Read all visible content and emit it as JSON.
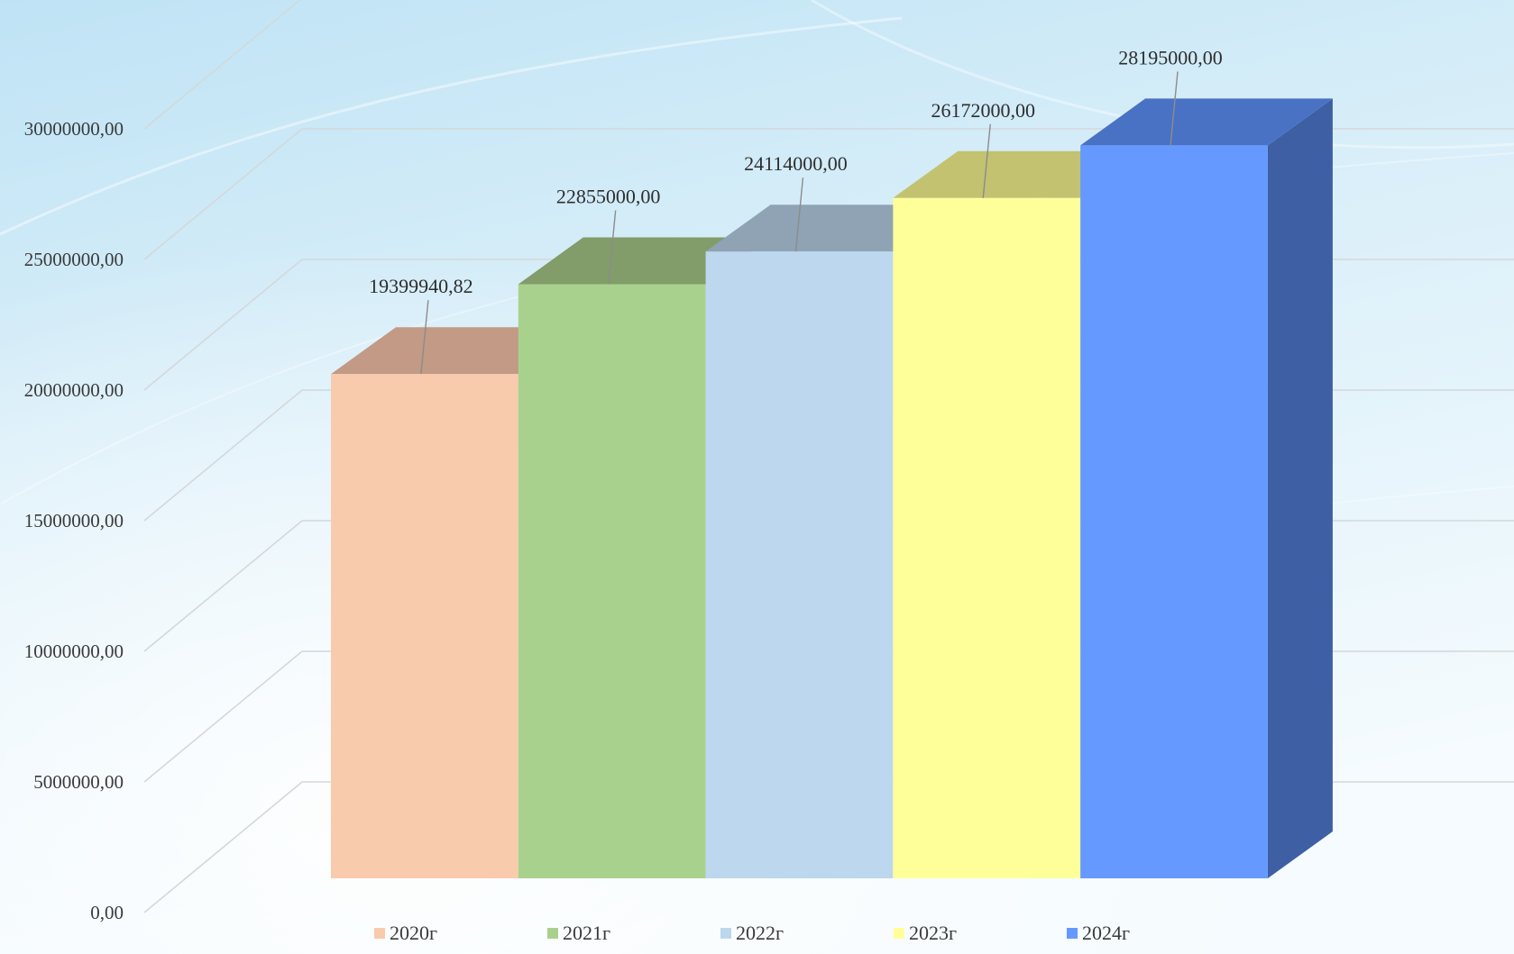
{
  "chart_data": {
    "type": "bar",
    "three_d": true,
    "categories": [
      "2020г",
      "2021г",
      "2022г",
      "2023г",
      "2024г"
    ],
    "values": [
      19399940.82,
      22855000.0,
      24114000.0,
      26172000.0,
      28195000.0
    ],
    "value_labels": [
      "19399940,82",
      "22855000,00",
      "24114000,00",
      "26172000,00",
      "28195000,00"
    ],
    "colors": [
      "#f8cbad",
      "#a9d18e",
      "#bdd7ee",
      "#ffff99",
      "#6699ff"
    ],
    "top_colors": [
      "#c29a85",
      "#829c6a",
      "#8fa3b5",
      "#c2c270",
      "#4a72c4"
    ],
    "side_colors": [
      "#b5947f",
      "#7f9a68",
      "#8ea2b4",
      "#c0c06e",
      "#3e5fa3"
    ],
    "ylim": [
      0,
      30000000
    ],
    "ytick_values": [
      0,
      5000000,
      10000000,
      15000000,
      20000000,
      25000000,
      30000000
    ],
    "ytick_labels": [
      "0,00",
      "5000000,00",
      "10000000,00",
      "15000000,00",
      "20000000,00",
      "25000000,00",
      "30000000,00"
    ],
    "grid": true,
    "legend": {
      "placement": "bottom",
      "entries": [
        "2020г",
        "2021г",
        "2022г",
        "2023г",
        "2024г"
      ]
    },
    "title": "",
    "xlabel": "",
    "ylabel": ""
  }
}
